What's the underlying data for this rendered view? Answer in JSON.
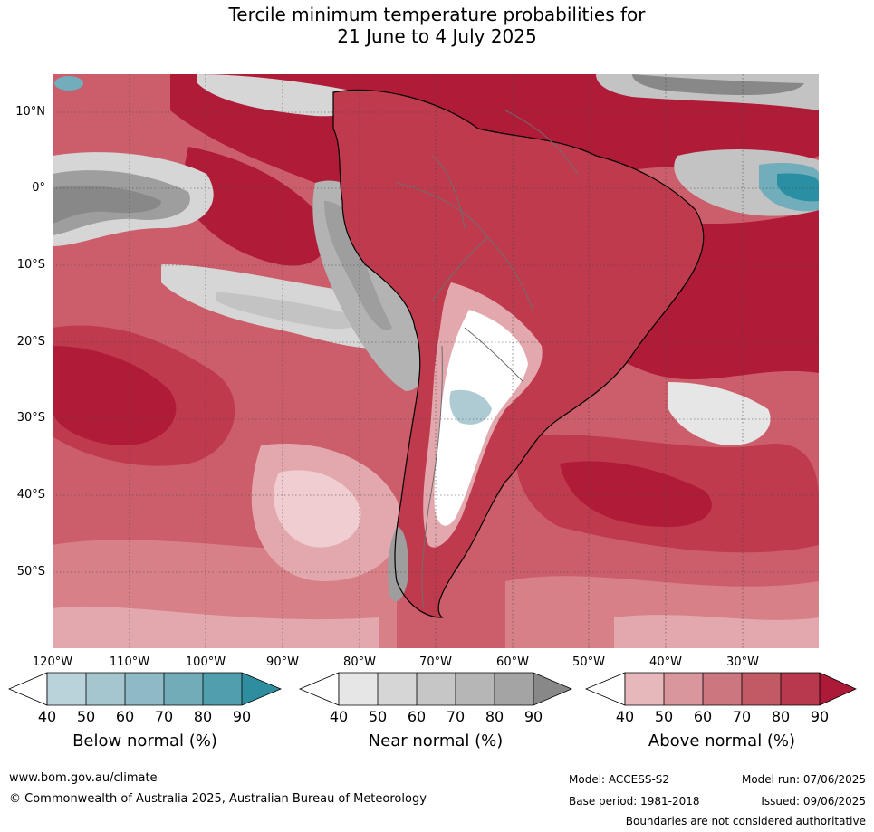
{
  "title": {
    "line1": "Tercile minimum temperature probabilities for",
    "line2": "21 June to 4 July 2025"
  },
  "map": {
    "lat_labels": [
      "10°N",
      "0°",
      "10°S",
      "20°S",
      "30°S",
      "40°S",
      "50°S"
    ],
    "lon_labels": [
      "120°W",
      "110°W",
      "100°W",
      "90°W",
      "80°W",
      "70°W",
      "60°W",
      "50°W",
      "40°W",
      "30°W"
    ],
    "extent": {
      "lon": [
        -120,
        -20
      ],
      "lat": [
        -60,
        15
      ]
    },
    "colors": {
      "above_90": "#b01b38",
      "above_80": "#c03a4d",
      "above_70": "#cc5e6b",
      "above_60": "#d88088",
      "above_50": "#e3a8ad",
      "above_40": "#efcdd0",
      "near_50": "#d6d6d6",
      "near_60": "#c3c3c3",
      "near_70": "#b3b3b3",
      "near_80": "#9e9e9e",
      "near_90": "#888888",
      "below_50": "#aecbd3",
      "below_70": "#72adbb",
      "below_90": "#2a8fa3",
      "land_white": "#ffffff"
    }
  },
  "legends": [
    {
      "title": "Below normal (%)",
      "ticks": [
        "40",
        "50",
        "60",
        "70",
        "80",
        "90"
      ],
      "colors": [
        "#bad3da",
        "#a5c6ce",
        "#8dbac4",
        "#73acb9",
        "#4f9fae",
        "#2f8da0"
      ]
    },
    {
      "title": "Near normal (%)",
      "ticks": [
        "40",
        "50",
        "60",
        "70",
        "80",
        "90"
      ],
      "colors": [
        "#e6e6e6",
        "#d6d6d6",
        "#c6c6c6",
        "#b6b6b6",
        "#a4a4a4",
        "#888888"
      ]
    },
    {
      "title": "Above normal (%)",
      "ticks": [
        "40",
        "50",
        "60",
        "70",
        "80",
        "90"
      ],
      "colors": [
        "#e6b8bc",
        "#d9979d",
        "#cc7680",
        "#c25a66",
        "#b8384d",
        "#ad1a38"
      ]
    }
  ],
  "footer": {
    "url": "www.bom.gov.au/climate",
    "copyright": "© Commonwealth of Australia 2025, Australian Bureau of Meteorology",
    "model": "Model: ACCESS-S2",
    "model_run": "Model run: 07/06/2025",
    "base_period": "Base period: 1981-2018",
    "issued": "Issued: 09/06/2025",
    "disclaimer": "Boundaries are not considered authoritative"
  }
}
